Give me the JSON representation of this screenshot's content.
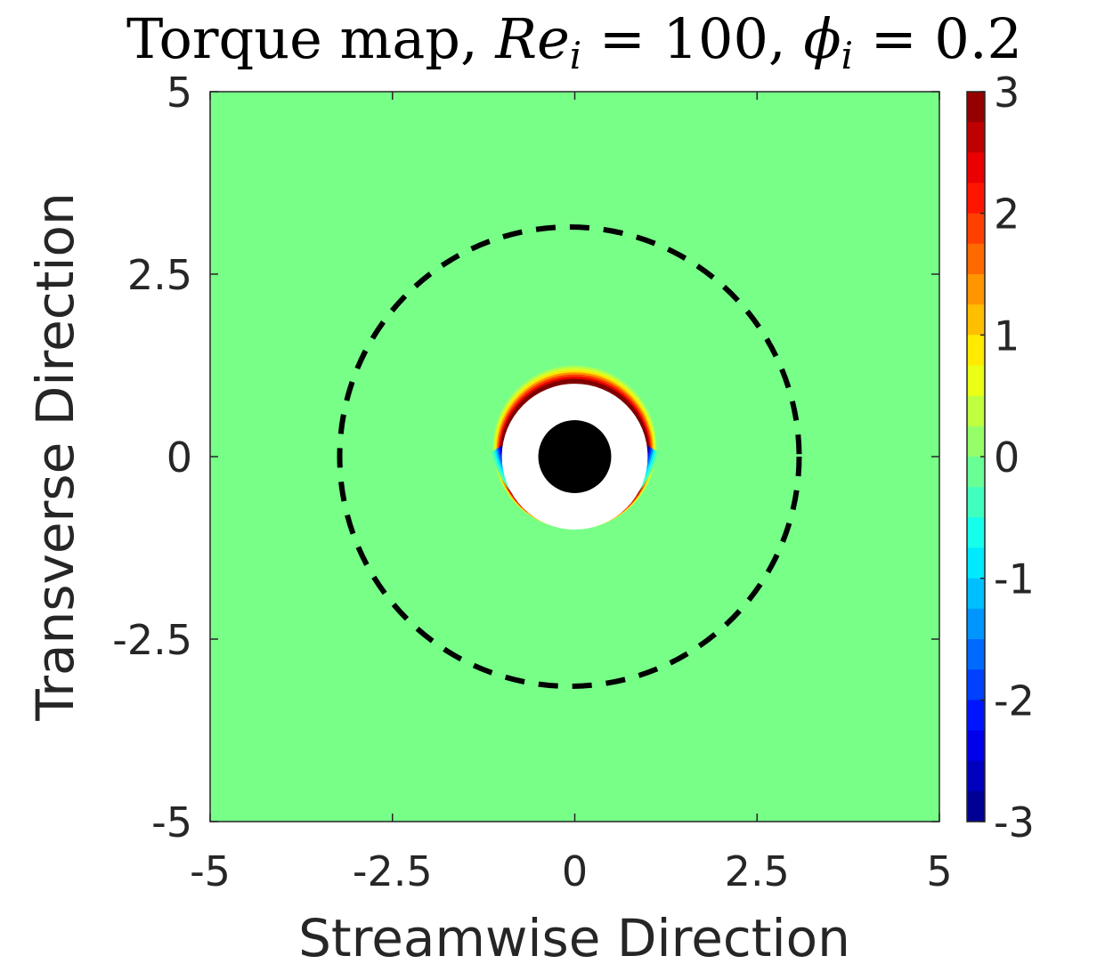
{
  "chart_data": {
    "type": "heatmap",
    "title": {
      "prefix": "Torque map, ",
      "re_symbol": "Re",
      "re_subscript": "i",
      "re_value": " = 100, ",
      "phi_symbol": "ϕ",
      "phi_subscript": "i",
      "phi_value": " = 0.2"
    },
    "xlabel": "Streamwise Direction",
    "ylabel": "Transverse Direction",
    "xlim": [
      -5,
      5
    ],
    "ylim": [
      -5,
      5
    ],
    "x_ticks": [
      {
        "value": -5,
        "label": "-5"
      },
      {
        "value": -2.5,
        "label": "-2.5"
      },
      {
        "value": 0,
        "label": "0"
      },
      {
        "value": 2.5,
        "label": "2.5"
      },
      {
        "value": 5,
        "label": "5"
      }
    ],
    "y_ticks": [
      {
        "value": 5,
        "label": "5"
      },
      {
        "value": 2.5,
        "label": "2.5"
      },
      {
        "value": 0,
        "label": "0"
      },
      {
        "value": -2.5,
        "label": "-2.5"
      },
      {
        "value": -5,
        "label": "-5"
      }
    ],
    "colorbar": {
      "colormap": "jet",
      "clim": [
        -3,
        3
      ],
      "levels": 24,
      "ticks": [
        {
          "value": 3,
          "label": "3"
        },
        {
          "value": 2,
          "label": "2"
        },
        {
          "value": 1,
          "label": "1"
        },
        {
          "value": 0,
          "label": "0"
        },
        {
          "value": -1,
          "label": "-1"
        },
        {
          "value": -2,
          "label": "-2"
        },
        {
          "value": -3,
          "label": "-3"
        }
      ]
    },
    "field": {
      "background_value": 0,
      "background_color": "#77ff88",
      "particle": {
        "center": [
          0,
          0
        ],
        "radius": 0.5,
        "color": "#000000"
      },
      "excluded_zone": {
        "center": [
          0,
          0
        ],
        "radius": 1.0,
        "color": "#ffffff"
      },
      "positive_band": {
        "location": "upper rim (y > 0)",
        "peak_value": 3
      },
      "negative_band": {
        "location": "lower rim (y < 0)",
        "peak_value": -3
      },
      "dashed_circle": {
        "center": [
          0,
          0
        ],
        "radius": 3.15,
        "color": "#000000"
      }
    }
  }
}
